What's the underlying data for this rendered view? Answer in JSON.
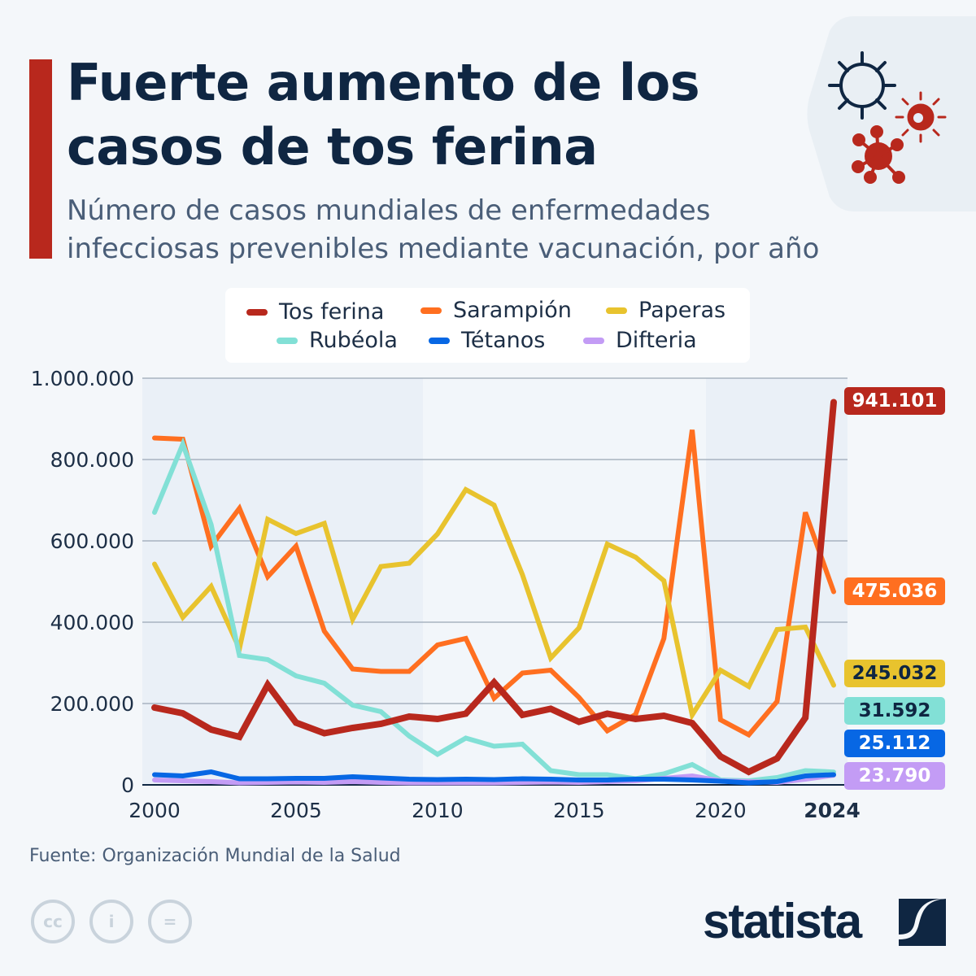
{
  "header": {
    "title_line1": "Fuerte aumento de los",
    "title_line2": "casos de tos ferina",
    "subtitle_line1": "Número de casos mundiales de enfermedades",
    "subtitle_line2": "infecciosas prevenibles mediante vacunación, por año",
    "icons": [
      "virus-outline-icon",
      "bacteria-icon",
      "virus-icon"
    ]
  },
  "footer": {
    "source": "Fuente: Organización Mundial de la Salud",
    "license_icons": [
      "cc-icon",
      "attribution-icon",
      "no-derivatives-icon"
    ],
    "logo": "statista"
  },
  "chart_data": {
    "type": "line",
    "title": "",
    "xlabel": "",
    "ylabel": "",
    "ylim": [
      0,
      1000000
    ],
    "xlim": [
      2000,
      2024
    ],
    "yticks": [
      0,
      200000,
      400000,
      600000,
      800000,
      1000000
    ],
    "ytick_labels": [
      "0",
      "200.000",
      "400.000",
      "600.000",
      "800.000",
      "1.000.000"
    ],
    "xtick_labels": [
      "2000",
      "2005",
      "2010",
      "2015",
      "2020",
      "2024"
    ],
    "xticks": [
      2000,
      2005,
      2010,
      2015,
      2020,
      2024
    ],
    "grid": "horizontal",
    "legend_placement": "top-center",
    "x": [
      2000,
      2001,
      2002,
      2003,
      2004,
      2005,
      2006,
      2007,
      2008,
      2009,
      2010,
      2011,
      2012,
      2013,
      2014,
      2015,
      2016,
      2017,
      2018,
      2019,
      2020,
      2021,
      2022,
      2023,
      2024
    ],
    "series": [
      {
        "name": "Sarampión",
        "color": "#ff6f20",
        "end_label": "475.036",
        "values": [
          853000,
          850000,
          587000,
          680000,
          512000,
          587000,
          378000,
          285000,
          279000,
          279000,
          344000,
          360000,
          213000,
          275000,
          282000,
          215000,
          133000,
          173000,
          360000,
          873000,
          160000,
          123000,
          205000,
          670000,
          475036
        ]
      },
      {
        "name": "Paperas",
        "color": "#e8c32e",
        "end_label": "245.032",
        "values": [
          543000,
          412000,
          488000,
          335000,
          653000,
          618000,
          643000,
          407000,
          537000,
          545000,
          617000,
          726000,
          688000,
          517000,
          312000,
          386000,
          592000,
          560000,
          502000,
          172000,
          282000,
          242000,
          382000,
          388000,
          245032
        ]
      },
      {
        "name": "Rubéola",
        "color": "#82e0d6",
        "end_label": "31.592",
        "values": [
          670000,
          838000,
          640000,
          318000,
          308000,
          268000,
          250000,
          196000,
          180000,
          120000,
          75000,
          115000,
          95000,
          100000,
          35000,
          25000,
          25000,
          15000,
          27000,
          50000,
          12000,
          10000,
          18000,
          35000,
          31592
        ]
      },
      {
        "name": "Difteria",
        "color": "#c39cf5",
        "end_label": "23.790",
        "values": [
          12000,
          10000,
          8000,
          5000,
          6000,
          7000,
          6000,
          8000,
          6000,
          5000,
          5000,
          5000,
          5000,
          6000,
          7000,
          6000,
          8000,
          10000,
          16000,
          22000,
          10000,
          8000,
          6000,
          14000,
          23790
        ]
      },
      {
        "name": "Tétanos",
        "color": "#0767e4",
        "end_label": "25.112",
        "values": [
          25000,
          22000,
          32000,
          15000,
          15000,
          16000,
          16000,
          20000,
          17000,
          14000,
          13000,
          14000,
          13000,
          15000,
          14000,
          12000,
          12000,
          14000,
          14000,
          12000,
          9000,
          5000,
          8000,
          22000,
          25112
        ]
      },
      {
        "name": "Tos ferina",
        "color": "#b8281d",
        "end_label": "941.101",
        "values": [
          190000,
          176000,
          136000,
          118000,
          246000,
          153000,
          127000,
          140000,
          150000,
          168000,
          162000,
          175000,
          252000,
          172000,
          187000,
          155000,
          175000,
          162000,
          170000,
          152000,
          70000,
          32000,
          65000,
          165000,
          941101
        ]
      }
    ],
    "legend_order": [
      "Tos ferina",
      "Sarampión",
      "Paperas",
      "Rubéola",
      "Tétanos",
      "Difteria"
    ]
  }
}
